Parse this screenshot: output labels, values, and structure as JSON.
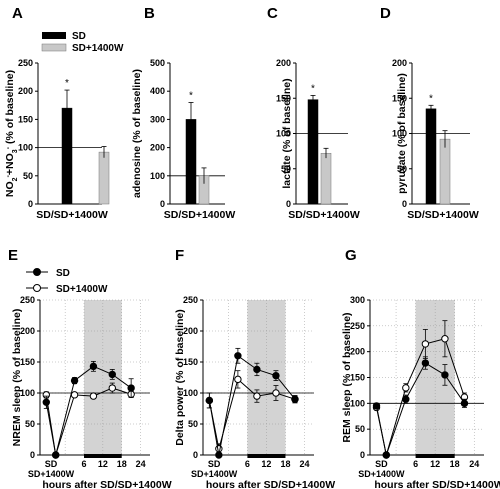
{
  "colors": {
    "sd": "#000000",
    "sd1400w": "#c8c8c8",
    "shade": "#d3d3d3"
  },
  "top_legend": [
    {
      "label": "SD",
      "swatch": "black"
    },
    {
      "label": "SD+1400W",
      "swatch": "gray"
    }
  ],
  "bottom_legend": [
    {
      "label": "SD",
      "marker": "filled"
    },
    {
      "label": "SD+1400W",
      "marker": "open"
    }
  ],
  "chart_data": [
    {
      "panel": "A",
      "type": "bar",
      "ylabel": "NO2-+NO3- (% of baseline)",
      "ylabel_parts": [
        "NO",
        "2",
        "-",
        "+NO",
        "3",
        "-",
        " (% of baseline)"
      ],
      "xlabel": "SD/SD+1400W",
      "ylim": [
        0,
        250
      ],
      "yticks": [
        0,
        50,
        100,
        150,
        200,
        250
      ],
      "baseline": 100,
      "series": [
        {
          "name": "SD",
          "value": 170,
          "error": 32,
          "star": "*"
        },
        {
          "name": "SD+1400W",
          "value": 92,
          "error": 10
        }
      ]
    },
    {
      "panel": "B",
      "type": "bar",
      "ylabel": "adenosine (% of baseline)",
      "xlabel": "SD/SD+1400W",
      "ylim": [
        0,
        500
      ],
      "yticks": [
        0,
        100,
        200,
        300,
        400,
        500
      ],
      "baseline": 100,
      "series": [
        {
          "name": "SD",
          "value": 300,
          "error": 60,
          "star": "*"
        },
        {
          "name": "SD+1400W",
          "value": 100,
          "error": 28
        }
      ]
    },
    {
      "panel": "C",
      "type": "bar",
      "ylabel": "lactate (% of baseline)",
      "xlabel": "SD/SD+1400W",
      "ylim": [
        0,
        200
      ],
      "yticks": [
        0,
        50,
        100,
        150,
        200
      ],
      "baseline": 100,
      "series": [
        {
          "name": "SD",
          "value": 148,
          "error": 6,
          "star": "*"
        },
        {
          "name": "SD+1400W",
          "value": 72,
          "error": 7
        }
      ]
    },
    {
      "panel": "D",
      "type": "bar",
      "ylabel": "pyruvate (% of baseline)",
      "xlabel": "SD/SD+1400W",
      "ylim": [
        0,
        200
      ],
      "yticks": [
        0,
        50,
        100,
        150,
        200
      ],
      "baseline": 100,
      "series": [
        {
          "name": "SD",
          "value": 135,
          "error": 5,
          "star": "*"
        },
        {
          "name": "SD+1400W",
          "value": 92,
          "error": 12
        }
      ]
    },
    {
      "panel": "E",
      "type": "line",
      "ylabel": "NREM sleep (% of baseline)",
      "xlabel": "hours after SD/SD+1400W",
      "ylim": [
        0,
        250
      ],
      "yticks": [
        0,
        50,
        100,
        150,
        200,
        250
      ],
      "xticks": [
        "SD",
        "6",
        "12",
        "18",
        "24"
      ],
      "sd_sublabel": "SD+1400W",
      "baseline": 100,
      "sd_bar": {
        "from": 0,
        "to": 6
      },
      "dark_bar": {
        "from": 6,
        "to": 18
      },
      "series": [
        {
          "name": "SD",
          "marker": "filled",
          "x": [
            -6,
            -3,
            3,
            9,
            15,
            21
          ],
          "y": [
            85,
            0,
            120,
            143,
            130,
            108
          ],
          "err": [
            10,
            0,
            5,
            8,
            8,
            15
          ]
        },
        {
          "name": "SD+1400W",
          "marker": "open",
          "x": [
            -6,
            -3,
            3,
            9,
            15,
            21
          ],
          "y": [
            97,
            0,
            97,
            95,
            108,
            98
          ],
          "err": [
            5,
            0,
            3,
            4,
            8,
            5
          ]
        }
      ]
    },
    {
      "panel": "F",
      "type": "line",
      "ylabel": "Delta power (% of baseline)",
      "xlabel": "hours after SD/SD+1400W",
      "ylim": [
        0,
        250
      ],
      "yticks": [
        0,
        50,
        100,
        150,
        200,
        250
      ],
      "xticks": [
        "SD",
        "6",
        "12",
        "18",
        "24"
      ],
      "sd_sublabel": "SD+1400W",
      "baseline": 100,
      "sd_bar": {
        "from": 0,
        "to": 6
      },
      "dark_bar": {
        "from": 6,
        "to": 18
      },
      "series": [
        {
          "name": "SD",
          "marker": "filled",
          "x": [
            -6,
            -3,
            3,
            9,
            15,
            21
          ],
          "y": [
            88,
            0,
            160,
            138,
            128,
            90
          ],
          "err": [
            12,
            0,
            12,
            10,
            8,
            6
          ]
        },
        {
          "name": "SD+1400W",
          "marker": "open",
          "x": [
            -6,
            -3,
            3,
            9,
            15,
            21
          ],
          "y": [
            88,
            10,
            122,
            95,
            100,
            90
          ],
          "err": [
            12,
            8,
            14,
            10,
            12,
            5
          ]
        }
      ]
    },
    {
      "panel": "G",
      "type": "line",
      "ylabel": "REM sleep (% of baseline)",
      "xlabel": "hours after SD/SD+1400W",
      "ylim": [
        0,
        300
      ],
      "yticks": [
        0,
        50,
        100,
        150,
        200,
        250,
        300
      ],
      "xticks": [
        "SD",
        "6",
        "12",
        "18",
        "24"
      ],
      "sd_sublabel": "SD+1400W",
      "baseline": 100,
      "sd_bar": {
        "from": 0,
        "to": 6
      },
      "dark_bar": {
        "from": 6,
        "to": 18
      },
      "series": [
        {
          "name": "SD",
          "marker": "filled",
          "x": [
            -6,
            -3,
            3,
            9,
            15,
            21
          ],
          "y": [
            95,
            0,
            108,
            178,
            155,
            100
          ],
          "err": [
            5,
            0,
            8,
            12,
            20,
            8
          ]
        },
        {
          "name": "SD+1400W",
          "marker": "open",
          "x": [
            -6,
            -3,
            3,
            9,
            15,
            21
          ],
          "y": [
            92,
            0,
            130,
            215,
            225,
            112
          ],
          "err": [
            5,
            0,
            8,
            28,
            35,
            8
          ]
        }
      ]
    }
  ]
}
